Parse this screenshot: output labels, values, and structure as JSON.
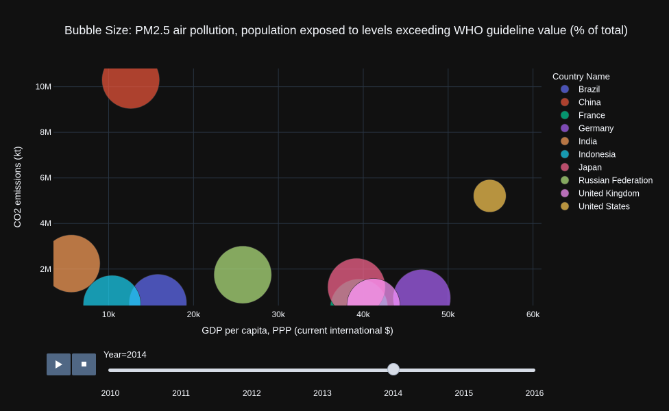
{
  "chart_data": {
    "type": "scatter",
    "title": "Bubble Size: PM2.5 air pollution, population exposed to levels exceeding WHO guideline value (% of total)",
    "xlabel": "GDP per capita, PPP (current international $)",
    "ylabel": "CO2 emissions (kt)",
    "xlim": [
      3500,
      61000
    ],
    "ylim": [
      400000,
      10800000
    ],
    "x_ticks": [
      10000,
      20000,
      30000,
      40000,
      50000,
      60000
    ],
    "x_tick_labels": [
      "10k",
      "20k",
      "30k",
      "40k",
      "50k",
      "60k"
    ],
    "y_ticks": [
      2000000,
      4000000,
      6000000,
      8000000,
      10000000
    ],
    "y_tick_labels": [
      "2M",
      "4M",
      "6M",
      "8M",
      "10M"
    ],
    "grid": true,
    "legend_title": "Country Name",
    "legend_position": "right",
    "series": [
      {
        "name": "Brazil",
        "color": "#636efa",
        "x": 15800,
        "y": 510000,
        "size": 100
      },
      {
        "name": "China",
        "color": "#ef553b",
        "x": 12600,
        "y": 10300000,
        "size": 100
      },
      {
        "name": "France",
        "color": "#00cc96",
        "x": 39500,
        "y": 300000,
        "size": 100
      },
      {
        "name": "Germany",
        "color": "#ab63fa",
        "x": 46900,
        "y": 720000,
        "size": 100
      },
      {
        "name": "India",
        "color": "#ffa15a",
        "x": 5600,
        "y": 2240000,
        "size": 100
      },
      {
        "name": "Indonesia",
        "color": "#19d3f3",
        "x": 10400,
        "y": 460000,
        "size": 100
      },
      {
        "name": "Japan",
        "color": "#ff6692",
        "x": 39200,
        "y": 1210000,
        "size": 100
      },
      {
        "name": "Russian Federation",
        "color": "#b6e880",
        "x": 25800,
        "y": 1750000,
        "size": 100
      },
      {
        "name": "United Kingdom",
        "color": "#ff97ff",
        "x": 41200,
        "y": 420000,
        "size": 85
      },
      {
        "name": "United States",
        "color": "#fecb52",
        "x": 54900,
        "y": 5210000,
        "size": 32
      }
    ]
  },
  "animation": {
    "play_label": "play-icon",
    "stop_label": "stop-icon",
    "current_label": "Year=2014",
    "years": [
      "2010",
      "2011",
      "2012",
      "2013",
      "2014",
      "2015",
      "2016"
    ],
    "current_year": "2014"
  }
}
